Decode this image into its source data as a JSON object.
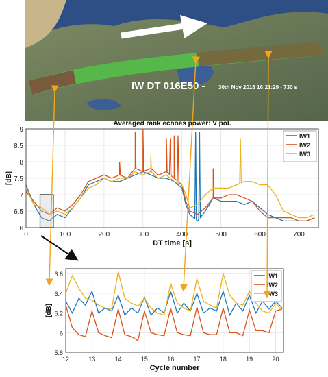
{
  "map": {
    "title": "IW DT 016E50 -",
    "subtitle_prefix": "30th ",
    "subtitle_month": "Nov",
    "subtitle_rest": " 2016 16:21:29 - 730 s",
    "colors": {
      "ocean": "#2e4f86",
      "land": "#6b7a5c",
      "swath_green": "#56b84a",
      "swath_brown": "#7a5a3c",
      "arrow": "#ffffff",
      "annotation": "#f2a51a"
    }
  },
  "chart_data": [
    {
      "type": "line",
      "title": "Averaged rank echoes power: V pol.",
      "xlabel": "DT time [s]",
      "ylabel": "[dB]",
      "xlim": [
        0,
        750
      ],
      "ylim": [
        6,
        9
      ],
      "xticks": [
        "0",
        "100",
        "200",
        "300",
        "400",
        "500",
        "600",
        "700"
      ],
      "yticks": [
        "6",
        "6.5",
        "7",
        "7.5",
        "8",
        "8.5",
        "9"
      ],
      "grid": true,
      "legend_position": "top-right",
      "highlight_window_x": [
        36,
        70
      ],
      "series": [
        {
          "name": "IW1",
          "color": "#1f77b4",
          "x": [
            0,
            20,
            40,
            60,
            80,
            100,
            120,
            140,
            160,
            180,
            200,
            220,
            240,
            260,
            280,
            300,
            320,
            340,
            360,
            380,
            400,
            410,
            420,
            440,
            460,
            480,
            500,
            520,
            540,
            560,
            580,
            600,
            620,
            640,
            660,
            680,
            700,
            720,
            740
          ],
          "y": [
            7.3,
            6.7,
            6.3,
            6.2,
            6.4,
            6.3,
            6.6,
            6.9,
            7.3,
            7.4,
            7.5,
            7.4,
            7.4,
            7.5,
            7.6,
            7.7,
            7.6,
            7.5,
            7.5,
            7.4,
            7.2,
            6.7,
            6.4,
            6.2,
            6.5,
            6.9,
            6.8,
            6.8,
            6.8,
            6.7,
            6.8,
            6.6,
            6.4,
            6.3,
            6.2,
            6.2,
            6.2,
            6.2,
            6.3
          ],
          "spikes": [
            [
              435,
              8.9
            ],
            [
              445,
              8.9
            ]
          ]
        },
        {
          "name": "IW2",
          "color": "#d95319",
          "x": [
            0,
            20,
            40,
            60,
            80,
            100,
            120,
            140,
            160,
            180,
            200,
            220,
            240,
            260,
            280,
            300,
            320,
            340,
            360,
            380,
            400,
            410,
            420,
            440,
            460,
            480,
            500,
            520,
            540,
            560,
            580,
            600,
            620,
            640,
            660,
            680,
            700,
            720,
            740
          ],
          "y": [
            7.1,
            6.8,
            6.5,
            6.4,
            6.6,
            6.5,
            6.7,
            7.0,
            7.4,
            7.5,
            7.6,
            7.5,
            7.6,
            7.5,
            7.8,
            7.7,
            7.8,
            7.6,
            7.7,
            7.5,
            7.3,
            6.8,
            6.5,
            6.4,
            6.6,
            6.9,
            6.9,
            7.0,
            7.0,
            6.9,
            6.8,
            6.5,
            6.3,
            6.3,
            6.3,
            6.3,
            6.2,
            6.2,
            6.3
          ],
          "spikes": [
            [
              240,
              8.0
            ],
            [
              280,
              8.9
            ],
            [
              300,
              9.0
            ],
            [
              360,
              8.7
            ],
            [
              370,
              8.7
            ],
            [
              380,
              8.8
            ],
            [
              390,
              8.8
            ],
            [
              480,
              7.8
            ]
          ]
        },
        {
          "name": "IW3",
          "color": "#edb120",
          "x": [
            0,
            20,
            40,
            60,
            80,
            100,
            120,
            140,
            160,
            180,
            200,
            220,
            240,
            260,
            280,
            300,
            320,
            340,
            360,
            380,
            400,
            410,
            420,
            440,
            460,
            480,
            500,
            520,
            540,
            560,
            580,
            600,
            620,
            640,
            660,
            680,
            700,
            720,
            740
          ],
          "y": [
            7.2,
            6.7,
            6.6,
            6.4,
            6.5,
            6.4,
            6.6,
            6.9,
            7.2,
            7.3,
            7.5,
            7.4,
            7.5,
            7.5,
            7.7,
            7.6,
            7.7,
            7.5,
            7.6,
            7.4,
            7.3,
            7.0,
            6.6,
            6.7,
            7.0,
            7.2,
            7.2,
            7.2,
            7.3,
            7.4,
            7.4,
            7.3,
            7.3,
            7.0,
            6.5,
            6.4,
            6.3,
            6.3,
            6.4
          ],
          "spikes": [
            [
              320,
              8.2
            ],
            [
              550,
              8.7
            ]
          ]
        }
      ]
    },
    {
      "type": "line",
      "title": "",
      "xlabel": "Cycle number",
      "ylabel": "[dB]",
      "xlim": [
        12,
        20.3
      ],
      "ylim": [
        5.8,
        6.65
      ],
      "xticks": [
        "12",
        "13",
        "14",
        "15",
        "16",
        "17",
        "18",
        "19",
        "20"
      ],
      "yticks": [
        "5.8",
        "6",
        "6.2",
        "6.4",
        "6.6"
      ],
      "grid": true,
      "legend_position": "top-right",
      "series": [
        {
          "name": "IW1",
          "color": "#1f77b4",
          "x": [
            12.0,
            12.25,
            12.5,
            12.75,
            13.0,
            13.25,
            13.5,
            13.75,
            14.0,
            14.25,
            14.5,
            14.75,
            15.0,
            15.25,
            15.5,
            15.75,
            16.0,
            16.25,
            16.5,
            16.75,
            17.0,
            17.25,
            17.5,
            17.75,
            18.0,
            18.25,
            18.5,
            18.75,
            19.0,
            19.25,
            19.5,
            19.75,
            20.0,
            20.25
          ],
          "y": [
            6.32,
            6.2,
            6.35,
            6.28,
            6.42,
            6.2,
            6.25,
            6.22,
            6.38,
            6.18,
            6.25,
            6.2,
            6.36,
            6.18,
            6.25,
            6.2,
            6.42,
            6.2,
            6.3,
            6.22,
            6.4,
            6.2,
            6.25,
            6.22,
            6.42,
            6.18,
            6.3,
            6.22,
            6.38,
            6.2,
            6.32,
            6.24,
            6.32,
            6.25
          ]
        },
        {
          "name": "IW2",
          "color": "#d95319",
          "x": [
            12.0,
            12.25,
            12.5,
            12.75,
            13.0,
            13.25,
            13.5,
            13.75,
            14.0,
            14.25,
            14.5,
            14.75,
            15.0,
            15.25,
            15.5,
            15.75,
            16.0,
            16.25,
            16.5,
            16.75,
            17.0,
            17.25,
            17.5,
            17.75,
            18.0,
            18.25,
            18.5,
            18.75,
            19.0,
            19.25,
            19.5,
            19.75,
            20.0,
            20.25
          ],
          "y": [
            6.28,
            6.05,
            5.98,
            5.96,
            6.22,
            6.0,
            5.97,
            5.95,
            6.24,
            5.98,
            5.96,
            5.92,
            6.22,
            6.0,
            5.98,
            5.97,
            6.25,
            6.0,
            5.98,
            5.97,
            6.26,
            6.0,
            5.98,
            5.98,
            6.25,
            6.0,
            6.0,
            5.97,
            6.23,
            6.02,
            6.02,
            6.0,
            6.22,
            6.24
          ]
        },
        {
          "name": "IW3",
          "color": "#edb120",
          "x": [
            12.0,
            12.25,
            12.5,
            12.75,
            13.0,
            13.25,
            13.5,
            13.75,
            14.0,
            14.25,
            14.5,
            14.75,
            15.0,
            15.25,
            15.5,
            15.75,
            16.0,
            16.25,
            16.5,
            16.75,
            17.0,
            17.25,
            17.5,
            17.75,
            18.0,
            18.25,
            18.5,
            18.75,
            19.0,
            19.25,
            19.5,
            19.75,
            20.0,
            20.25
          ],
          "y": [
            6.4,
            6.58,
            6.45,
            6.35,
            6.33,
            6.28,
            6.25,
            6.24,
            6.62,
            6.35,
            6.3,
            6.27,
            6.35,
            6.25,
            6.2,
            6.18,
            6.5,
            6.3,
            6.25,
            6.22,
            6.55,
            6.32,
            6.28,
            6.25,
            6.6,
            6.38,
            6.3,
            6.28,
            6.42,
            6.3,
            6.22,
            6.2,
            6.3,
            6.22
          ]
        }
      ]
    }
  ]
}
